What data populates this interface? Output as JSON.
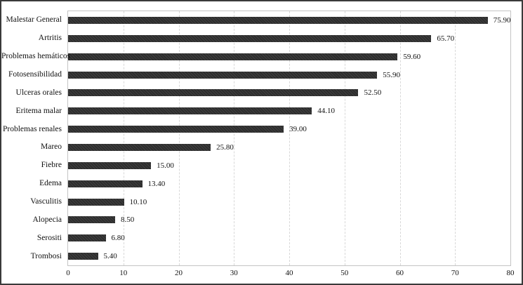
{
  "chart_data": {
    "type": "bar",
    "orientation": "horizontal",
    "title": "",
    "xlabel": "",
    "ylabel": "",
    "categories": [
      "Malestar General",
      "Artritis",
      "Problemas hemáticos",
      "Fotosensibilidad",
      "Ulceras orales",
      "Eritema malar",
      "Problemas renales",
      "Mareo",
      "Fiebre",
      "Edema",
      "Vasculitis",
      "Alopecia",
      "Serositi",
      "Trombosi"
    ],
    "values": [
      75.9,
      65.7,
      59.6,
      55.9,
      52.5,
      44.1,
      39.0,
      25.8,
      15.0,
      13.4,
      10.1,
      8.5,
      6.8,
      5.4
    ],
    "value_labels": [
      "75.90",
      "65.70",
      "59.60",
      "55.90",
      "52.50",
      "44.10",
      "39.00",
      "25.80",
      "15.00",
      "13.40",
      "10.10",
      "8.50",
      "6.80",
      "5.40"
    ],
    "xlim": [
      0,
      80
    ],
    "x_ticks": [
      "0",
      "10",
      "20",
      "30",
      "40",
      "50",
      "60",
      "70",
      "80"
    ],
    "grid": "vertical-dashed",
    "legend": "none",
    "colors": {
      "bar": "#2d2d2d",
      "gridline": "#d8d8d8",
      "plot_border": "#c4c4c4",
      "outer_frame": "#3a3a3a",
      "text": "#111111",
      "background": "#ffffff"
    }
  }
}
